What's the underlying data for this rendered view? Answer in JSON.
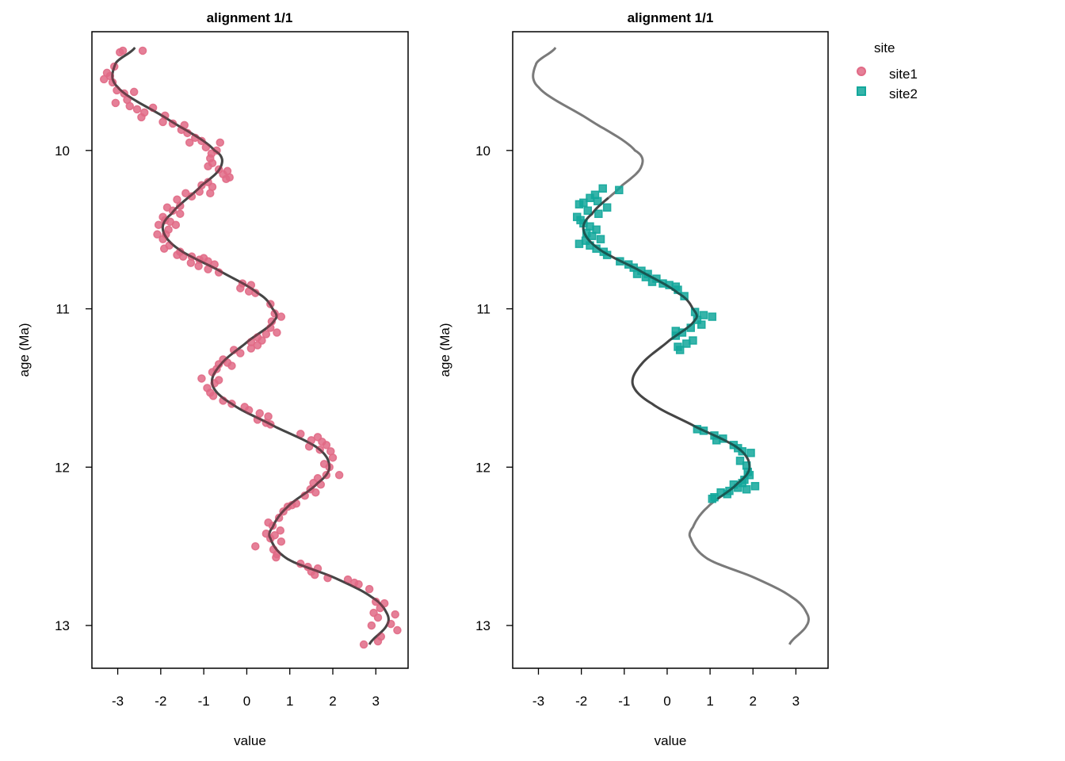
{
  "legend": {
    "title": "site",
    "placement": "right",
    "items": [
      {
        "label": "site1",
        "color": "#e16a86",
        "shape": "circle"
      },
      {
        "label": "site2",
        "color": "#13a79b",
        "shape": "square"
      }
    ]
  },
  "colors": {
    "curve": "#4d4d4d",
    "site1": "#e16a86",
    "site2": "#13a79b"
  },
  "chart_data": [
    {
      "type": "scatter",
      "title": "alignment 1/1",
      "xlabel": "value",
      "ylabel": "age (Ma)",
      "xlim": [
        -3.6,
        3.75
      ],
      "ylim": [
        13.27,
        9.25
      ],
      "y_reversed": true,
      "xticks": [
        -3,
        -2,
        -1,
        0,
        1,
        2,
        3
      ],
      "yticks": [
        10,
        11,
        12,
        13
      ],
      "grid": false,
      "reference_curve": {
        "y_range": [
          9.35,
          13.12
        ],
        "shown_y_range": [
          9.35,
          13.12
        ]
      },
      "series": [
        {
          "name": "site1",
          "marker": "circle",
          "points": [
            [
              -2.95,
              9.38
            ],
            [
              -2.88,
              9.37
            ],
            [
              -2.42,
              9.37
            ],
            [
              -3.08,
              9.47
            ],
            [
              -3.25,
              9.51
            ],
            [
              -3.18,
              9.53
            ],
            [
              -3.32,
              9.55
            ],
            [
              -3.12,
              9.57
            ],
            [
              -3.02,
              9.62
            ],
            [
              -2.85,
              9.64
            ],
            [
              -2.62,
              9.63
            ],
            [
              -2.78,
              9.68
            ],
            [
              -3.05,
              9.7
            ],
            [
              -2.72,
              9.72
            ],
            [
              -2.55,
              9.74
            ],
            [
              -2.38,
              9.76
            ],
            [
              -2.18,
              9.73
            ],
            [
              -2.45,
              9.79
            ],
            [
              -1.9,
              9.78
            ],
            [
              -1.95,
              9.82
            ],
            [
              -1.72,
              9.83
            ],
            [
              -1.45,
              9.84
            ],
            [
              -1.52,
              9.87
            ],
            [
              -1.38,
              9.89
            ],
            [
              -1.2,
              9.92
            ],
            [
              -1.33,
              9.95
            ],
            [
              -1.05,
              9.94
            ],
            [
              -0.62,
              9.95
            ],
            [
              -0.95,
              9.98
            ],
            [
              -0.7,
              10.0
            ],
            [
              -0.82,
              10.02
            ],
            [
              -0.85,
              10.05
            ],
            [
              -0.8,
              10.08
            ],
            [
              -0.9,
              10.1
            ],
            [
              -0.65,
              10.12
            ],
            [
              -0.45,
              10.13
            ],
            [
              -0.55,
              10.15
            ],
            [
              -0.48,
              10.18
            ],
            [
              -0.4,
              10.17
            ],
            [
              -0.9,
              10.2
            ],
            [
              -1.05,
              10.22
            ],
            [
              -0.8,
              10.23
            ],
            [
              -1.1,
              10.26
            ],
            [
              -1.42,
              10.27
            ],
            [
              -1.28,
              10.29
            ],
            [
              -0.85,
              10.27
            ],
            [
              -1.62,
              10.31
            ],
            [
              -1.55,
              10.35
            ],
            [
              -1.85,
              10.36
            ],
            [
              -1.72,
              10.38
            ],
            [
              -1.55,
              10.4
            ],
            [
              -1.95,
              10.42
            ],
            [
              -1.9,
              10.44
            ],
            [
              -1.78,
              10.45
            ],
            [
              -1.65,
              10.47
            ],
            [
              -2.05,
              10.47
            ],
            [
              -1.82,
              10.5
            ],
            [
              -1.88,
              10.53
            ],
            [
              -2.08,
              10.53
            ],
            [
              -1.95,
              10.56
            ],
            [
              -1.8,
              10.6
            ],
            [
              -1.92,
              10.62
            ],
            [
              -1.55,
              10.64
            ],
            [
              -1.48,
              10.67
            ],
            [
              -1.62,
              10.66
            ],
            [
              -1.28,
              10.67
            ],
            [
              -1.1,
              10.69
            ],
            [
              -1.0,
              10.68
            ],
            [
              -0.9,
              10.7
            ],
            [
              -1.3,
              10.71
            ],
            [
              -1.12,
              10.73
            ],
            [
              -0.75,
              10.72
            ],
            [
              -0.9,
              10.75
            ],
            [
              -0.65,
              10.77
            ],
            [
              -0.1,
              10.84
            ],
            [
              0.1,
              10.85
            ],
            [
              -0.15,
              10.87
            ],
            [
              0.05,
              10.89
            ],
            [
              0.2,
              10.9
            ],
            [
              0.55,
              10.97
            ],
            [
              0.65,
              11.03
            ],
            [
              0.8,
              11.05
            ],
            [
              0.58,
              11.08
            ],
            [
              0.55,
              11.12
            ],
            [
              0.7,
              11.15
            ],
            [
              0.45,
              11.16
            ],
            [
              0.25,
              11.18
            ],
            [
              0.35,
              11.2
            ],
            [
              0.1,
              11.21
            ],
            [
              0.25,
              11.23
            ],
            [
              0.1,
              11.25
            ],
            [
              -0.3,
              11.26
            ],
            [
              -0.15,
              11.28
            ],
            [
              -0.55,
              11.32
            ],
            [
              -0.45,
              11.34
            ],
            [
              -0.65,
              11.35
            ],
            [
              -0.35,
              11.36
            ],
            [
              -0.7,
              11.38
            ],
            [
              -0.8,
              11.4
            ],
            [
              -1.05,
              11.44
            ],
            [
              -0.65,
              11.45
            ],
            [
              -0.75,
              11.47
            ],
            [
              -0.92,
              11.5
            ],
            [
              -0.85,
              11.53
            ],
            [
              -0.78,
              11.55
            ],
            [
              -0.55,
              11.58
            ],
            [
              -0.35,
              11.6
            ],
            [
              -0.05,
              11.62
            ],
            [
              0.05,
              11.64
            ],
            [
              0.3,
              11.66
            ],
            [
              0.5,
              11.68
            ],
            [
              0.25,
              11.7
            ],
            [
              0.45,
              11.72
            ],
            [
              0.55,
              11.73
            ],
            [
              1.25,
              11.79
            ],
            [
              1.65,
              11.81
            ],
            [
              1.5,
              11.83
            ],
            [
              1.75,
              11.84
            ],
            [
              1.85,
              11.86
            ],
            [
              1.45,
              11.87
            ],
            [
              1.7,
              11.89
            ],
            [
              1.95,
              11.9
            ],
            [
              2.0,
              11.94
            ],
            [
              1.8,
              11.98
            ],
            [
              1.92,
              12.0
            ],
            [
              2.15,
              12.05
            ],
            [
              1.85,
              12.05
            ],
            [
              1.65,
              12.07
            ],
            [
              1.55,
              12.1
            ],
            [
              1.72,
              12.11
            ],
            [
              1.48,
              12.14
            ],
            [
              1.6,
              12.16
            ],
            [
              1.35,
              12.18
            ],
            [
              1.15,
              12.23
            ],
            [
              0.95,
              12.25
            ],
            [
              1.05,
              12.24
            ],
            [
              0.85,
              12.28
            ],
            [
              0.75,
              12.32
            ],
            [
              0.5,
              12.35
            ],
            [
              0.6,
              12.37
            ],
            [
              0.78,
              12.4
            ],
            [
              0.45,
              12.42
            ],
            [
              0.65,
              12.43
            ],
            [
              0.55,
              12.45
            ],
            [
              0.8,
              12.47
            ],
            [
              0.2,
              12.5
            ],
            [
              0.62,
              12.52
            ],
            [
              0.7,
              12.55
            ],
            [
              0.68,
              12.57
            ],
            [
              1.25,
              12.61
            ],
            [
              1.42,
              12.63
            ],
            [
              1.65,
              12.64
            ],
            [
              1.5,
              12.66
            ],
            [
              1.58,
              12.68
            ],
            [
              1.88,
              12.7
            ],
            [
              2.35,
              12.71
            ],
            [
              2.5,
              12.73
            ],
            [
              2.6,
              12.74
            ],
            [
              2.85,
              12.77
            ],
            [
              3.0,
              12.85
            ],
            [
              3.2,
              12.86
            ],
            [
              3.1,
              12.89
            ],
            [
              2.95,
              12.92
            ],
            [
              3.45,
              12.93
            ],
            [
              3.05,
              12.95
            ],
            [
              3.35,
              12.99
            ],
            [
              2.9,
              13.0
            ],
            [
              3.5,
              13.03
            ],
            [
              3.12,
              13.07
            ],
            [
              3.05,
              13.1
            ],
            [
              2.72,
              13.12
            ]
          ]
        }
      ]
    },
    {
      "type": "scatter",
      "title": "alignment 1/1",
      "xlabel": "value",
      "ylabel": "age (Ma)",
      "xlim": [
        -3.6,
        3.75
      ],
      "ylim": [
        13.27,
        9.25
      ],
      "y_reversed": true,
      "xticks": [
        -3,
        -2,
        -1,
        0,
        1,
        2,
        3
      ],
      "yticks": [
        10,
        11,
        12,
        13
      ],
      "grid": false,
      "reference_curve": {
        "y_range": [
          9.35,
          13.12
        ],
        "shown_y_range": [
          10.3,
          12.2
        ]
      },
      "series": [
        {
          "name": "site2",
          "marker": "square",
          "points": [
            [
              -1.5,
              10.24
            ],
            [
              -1.12,
              10.25
            ],
            [
              -1.68,
              10.28
            ],
            [
              -1.8,
              10.3
            ],
            [
              -1.62,
              10.32
            ],
            [
              -1.95,
              10.33
            ],
            [
              -2.05,
              10.34
            ],
            [
              -1.4,
              10.36
            ],
            [
              -1.85,
              10.38
            ],
            [
              -1.6,
              10.4
            ],
            [
              -2.1,
              10.42
            ],
            [
              -2.02,
              10.44
            ],
            [
              -1.95,
              10.46
            ],
            [
              -1.8,
              10.48
            ],
            [
              -1.65,
              10.5
            ],
            [
              -1.88,
              10.52
            ],
            [
              -1.75,
              10.54
            ],
            [
              -1.55,
              10.56
            ],
            [
              -1.9,
              10.57
            ],
            [
              -2.05,
              10.59
            ],
            [
              -1.8,
              10.6
            ],
            [
              -1.65,
              10.62
            ],
            [
              -1.48,
              10.64
            ],
            [
              -1.4,
              10.66
            ],
            [
              -1.1,
              10.7
            ],
            [
              -0.9,
              10.72
            ],
            [
              -0.78,
              10.74
            ],
            [
              -0.6,
              10.76
            ],
            [
              -0.7,
              10.78
            ],
            [
              -0.45,
              10.78
            ],
            [
              -0.5,
              10.8
            ],
            [
              -0.25,
              10.81
            ],
            [
              -0.35,
              10.83
            ],
            [
              -0.1,
              10.84
            ],
            [
              0.05,
              10.85
            ],
            [
              0.2,
              10.86
            ],
            [
              0.25,
              10.88
            ],
            [
              0.4,
              10.92
            ],
            [
              0.65,
              11.02
            ],
            [
              0.85,
              11.04
            ],
            [
              1.05,
              11.05
            ],
            [
              0.7,
              11.07
            ],
            [
              0.8,
              11.1
            ],
            [
              0.55,
              11.12
            ],
            [
              0.2,
              11.14
            ],
            [
              0.35,
              11.15
            ],
            [
              0.2,
              11.17
            ],
            [
              0.6,
              11.2
            ],
            [
              0.45,
              11.22
            ],
            [
              0.25,
              11.24
            ],
            [
              0.3,
              11.26
            ],
            [
              0.7,
              11.76
            ],
            [
              0.85,
              11.77
            ],
            [
              1.1,
              11.8
            ],
            [
              1.3,
              11.82
            ],
            [
              1.15,
              11.83
            ],
            [
              1.55,
              11.86
            ],
            [
              1.65,
              11.88
            ],
            [
              1.75,
              11.9
            ],
            [
              1.95,
              11.91
            ],
            [
              1.7,
              11.96
            ],
            [
              1.85,
              11.99
            ],
            [
              1.88,
              12.03
            ],
            [
              1.92,
              12.05
            ],
            [
              1.8,
              12.08
            ],
            [
              1.75,
              12.1
            ],
            [
              1.55,
              12.11
            ],
            [
              2.05,
              12.12
            ],
            [
              1.65,
              12.13
            ],
            [
              1.85,
              12.14
            ],
            [
              1.45,
              12.15
            ],
            [
              1.25,
              12.16
            ],
            [
              1.4,
              12.17
            ],
            [
              1.1,
              12.19
            ],
            [
              1.05,
              12.2
            ]
          ]
        }
      ]
    }
  ]
}
